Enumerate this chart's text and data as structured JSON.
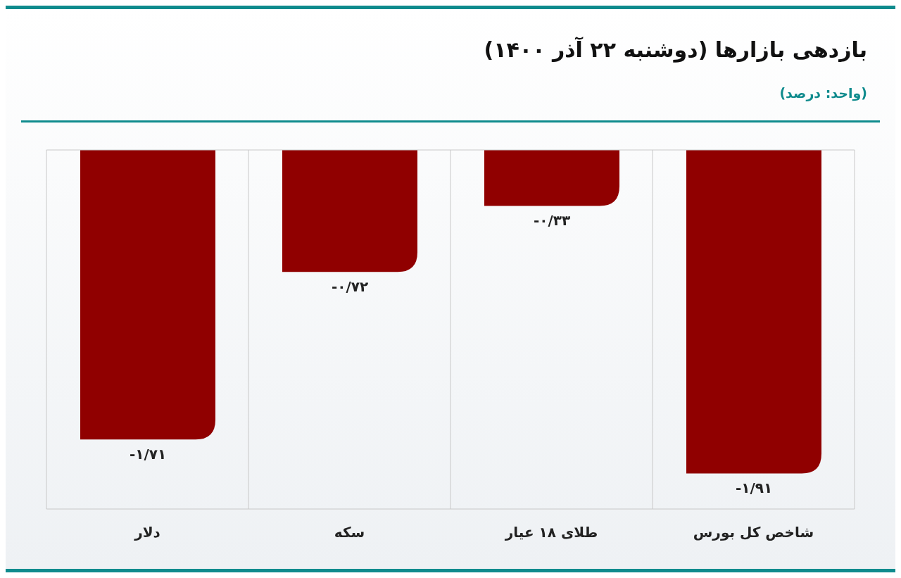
{
  "chart_data": {
    "type": "bar",
    "title": "بازدهی بازارها (دوشنبه ۲۲ آذر ۱۴۰۰)",
    "subtitle": "(واحد: درصد)",
    "categories": [
      "دلار",
      "سکه",
      "طلای ۱۸ عیار",
      "شاخص کل بورس"
    ],
    "values": [
      -1.71,
      -0.72,
      -0.33,
      -1.91
    ],
    "value_labels": [
      "-۱/۷۱",
      "-۰/۷۲",
      "-۰/۳۳",
      "-۱/۹۱"
    ],
    "color": "#900000",
    "grid": "x"
  }
}
